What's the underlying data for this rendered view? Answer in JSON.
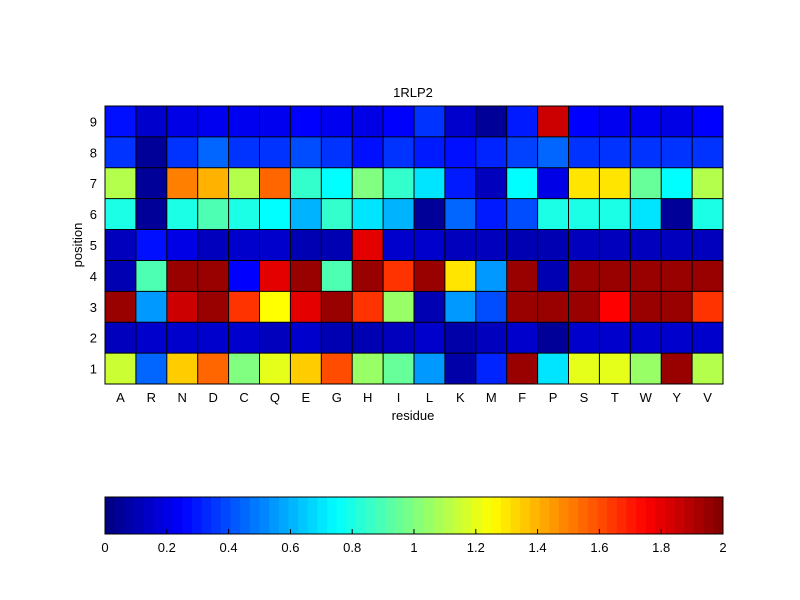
{
  "chart_data": [
    {
      "type": "heatmap",
      "title": "1RLP2",
      "xlabel": "residue",
      "ylabel": "position",
      "x_categories": [
        "A",
        "R",
        "N",
        "D",
        "C",
        "Q",
        "E",
        "G",
        "H",
        "I",
        "L",
        "K",
        "M",
        "F",
        "P",
        "S",
        "T",
        "W",
        "Y",
        "V"
      ],
      "y_categories": [
        "9",
        "8",
        "7",
        "6",
        "5",
        "4",
        "3",
        "2",
        "1"
      ],
      "color_range": [
        0,
        2
      ],
      "colormap": "jet",
      "values": [
        [
          0.28,
          0.15,
          0.2,
          0.22,
          0.22,
          0.22,
          0.25,
          0.22,
          0.2,
          0.25,
          0.35,
          0.15,
          0.05,
          0.3,
          1.85,
          0.25,
          0.22,
          0.22,
          0.2,
          0.25
        ],
        [
          0.35,
          0.05,
          0.35,
          0.45,
          0.35,
          0.35,
          0.4,
          0.35,
          0.28,
          0.35,
          0.3,
          0.28,
          0.32,
          0.38,
          0.45,
          0.35,
          0.35,
          0.35,
          0.35,
          0.35
        ],
        [
          1.1,
          0.05,
          1.5,
          1.4,
          1.1,
          1.55,
          0.85,
          0.75,
          1.0,
          0.85,
          0.7,
          0.3,
          0.12,
          0.75,
          0.2,
          1.3,
          1.3,
          0.95,
          0.75,
          1.1
        ],
        [
          0.8,
          0.05,
          0.8,
          0.9,
          0.8,
          0.75,
          0.6,
          0.85,
          0.7,
          0.6,
          0.05,
          0.45,
          0.3,
          0.4,
          0.8,
          0.8,
          0.8,
          0.7,
          0.05,
          0.8
        ],
        [
          0.12,
          0.28,
          0.2,
          0.12,
          0.15,
          0.15,
          0.1,
          0.1,
          1.8,
          0.15,
          0.15,
          0.12,
          0.12,
          0.1,
          0.1,
          0.12,
          0.12,
          0.12,
          0.12,
          0.12
        ],
        [
          0.1,
          0.9,
          1.95,
          1.95,
          0.25,
          1.8,
          1.95,
          0.9,
          1.95,
          1.65,
          1.95,
          1.3,
          0.55,
          1.95,
          0.1,
          1.95,
          1.95,
          1.95,
          1.95,
          1.95
        ],
        [
          1.95,
          0.55,
          1.85,
          1.95,
          1.65,
          1.25,
          1.8,
          1.95,
          1.65,
          1.05,
          0.1,
          0.55,
          0.4,
          1.95,
          1.95,
          1.95,
          1.75,
          1.95,
          1.95,
          1.65
        ],
        [
          0.12,
          0.15,
          0.15,
          0.15,
          0.15,
          0.12,
          0.15,
          0.1,
          0.1,
          0.12,
          0.15,
          0.08,
          0.12,
          0.15,
          0.05,
          0.15,
          0.15,
          0.15,
          0.15,
          0.15
        ],
        [
          1.15,
          0.45,
          1.35,
          1.55,
          1.0,
          1.2,
          1.35,
          1.6,
          1.05,
          0.95,
          0.55,
          0.08,
          0.32,
          1.95,
          0.7,
          1.2,
          1.2,
          1.05,
          1.95,
          1.1
        ]
      ],
      "colorbar": {
        "ticks": [
          "0",
          "0.2",
          "0.4",
          "0.6",
          "0.8",
          "1",
          "1.2",
          "1.4",
          "1.6",
          "1.8",
          "2"
        ]
      }
    }
  ]
}
